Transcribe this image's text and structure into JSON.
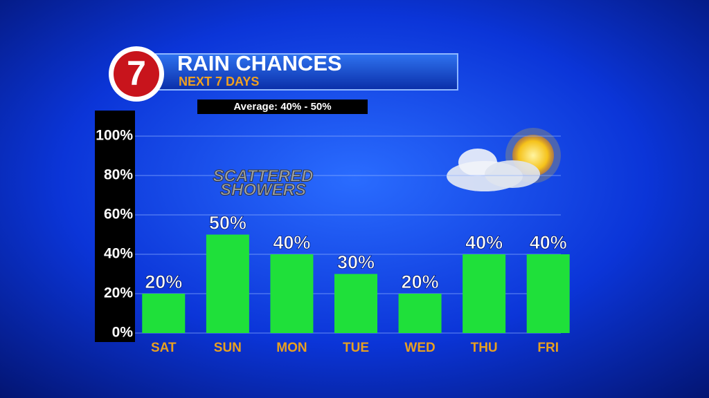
{
  "chart_data": {
    "type": "bar",
    "logo": "7",
    "title": "RAIN CHANCES",
    "subtitle": "NEXT 7 DAYS",
    "note": "Average: 40% - 50%",
    "annotations": [
      "SCATTERED",
      "SHOWERS"
    ],
    "categories": [
      "SAT",
      "SUN",
      "MON",
      "TUE",
      "WED",
      "THU",
      "FRI"
    ],
    "values": [
      20,
      50,
      40,
      30,
      20,
      40,
      40
    ],
    "value_labels": [
      "20%",
      "50%",
      "40%",
      "30%",
      "20%",
      "40%",
      "40%"
    ],
    "color": "#1fe03a",
    "ylim": [
      0,
      100
    ],
    "yticks": [
      {
        "value": 0,
        "label": "0%"
      },
      {
        "value": 20,
        "label": "20%"
      },
      {
        "value": 40,
        "label": "40%"
      },
      {
        "value": 60,
        "label": "60%"
      },
      {
        "value": 80,
        "label": "80%"
      },
      {
        "value": 100,
        "label": "100%"
      }
    ],
    "grid": true
  }
}
